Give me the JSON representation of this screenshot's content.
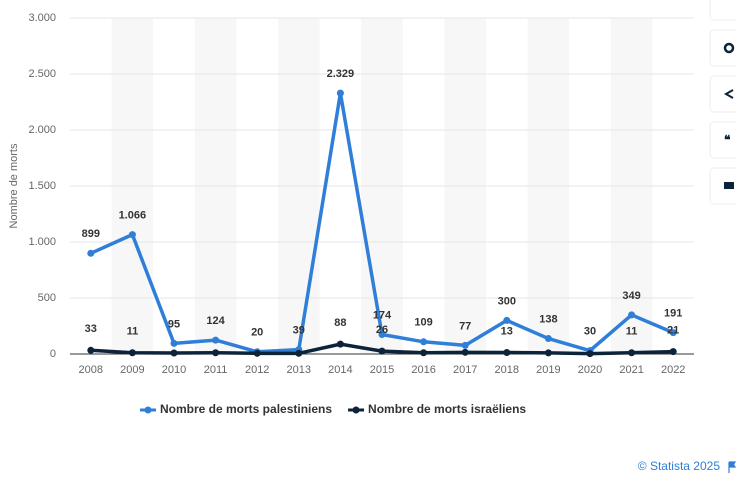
{
  "chart_data": {
    "type": "line",
    "y_label": "Nombre de morts",
    "categories": [
      "2008",
      "2009",
      "2010",
      "2011",
      "2012",
      "2013",
      "2014",
      "2015",
      "2016",
      "2017",
      "2018",
      "2019",
      "2020",
      "2021",
      "2022"
    ],
    "series": [
      {
        "name": "Nombre de morts palestiniens",
        "color": "#2f7ed8",
        "values": [
          899,
          1066,
          95,
          124,
          20,
          39,
          2329,
          174,
          109,
          77,
          300,
          138,
          30,
          349,
          191
        ],
        "value_labels": [
          "899",
          "1.066",
          "95",
          "124",
          "20",
          "39",
          "2.329",
          "174",
          "109",
          "77",
          "300",
          "138",
          "30",
          "349",
          "191"
        ]
      },
      {
        "name": "Nombre de morts israëliens",
        "color": "#0d233a",
        "values": [
          33,
          11,
          9,
          11,
          6,
          6,
          88,
          26,
          11,
          15,
          13,
          10,
          3,
          11,
          21
        ],
        "value_labels": [
          "33",
          "11",
          null,
          null,
          null,
          null,
          "88",
          "26",
          null,
          null,
          "13",
          null,
          null,
          "11",
          "21"
        ]
      }
    ],
    "ylim": [
      0,
      3000
    ],
    "yticks": [
      0,
      500,
      {
        "value": 1000,
        "label": "1.000"
      },
      {
        "value": 1500,
        "label": "1.500"
      },
      {
        "value": 2000,
        "label": "2.000"
      },
      {
        "value": 2500,
        "label": "2.500"
      },
      {
        "value": 3000,
        "label": "3.000"
      }
    ],
    "grid": true,
    "legend": "bottom",
    "credit": "© Statista 2025"
  }
}
